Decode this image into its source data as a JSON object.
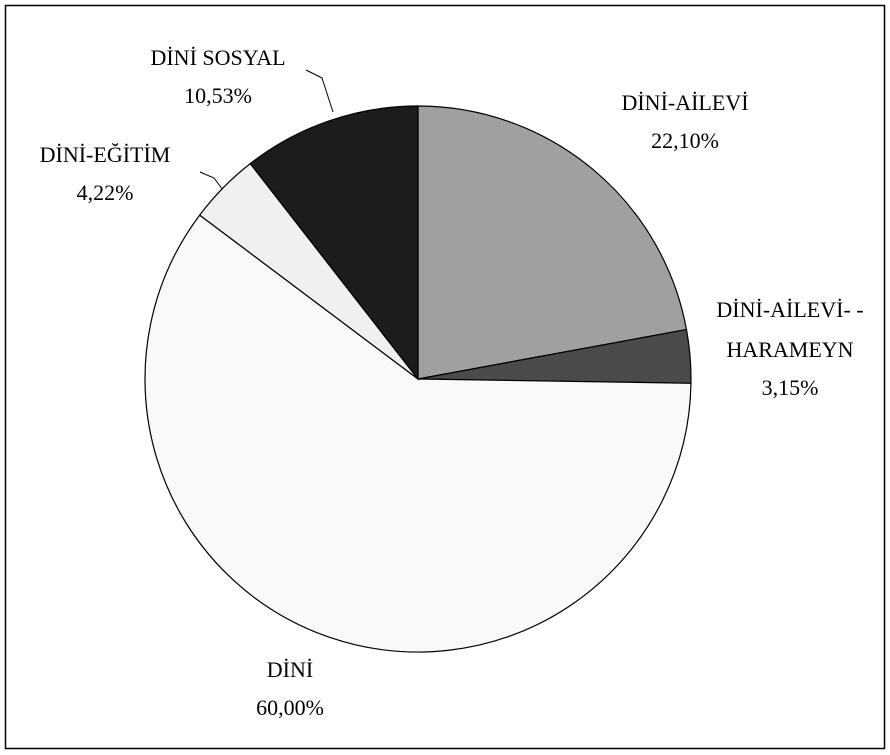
{
  "chart_data": {
    "type": "pie",
    "categories": [
      "DİNİ-AİLEVİ",
      "DİNİ-AİLEVİ- -\nHARAMEYN",
      "DİNİ",
      "DİNİ-EĞİTİM",
      "DİNİ SOSYAL"
    ],
    "values": [
      22.1,
      3.15,
      60.0,
      4.22,
      10.53
    ],
    "value_labels": [
      "22,10%",
      "3,15%",
      "60,00%",
      "4,22%",
      "10,53%"
    ],
    "colors": [
      "#a0a0a0",
      "#4a4a4a",
      "#f9f9f9",
      "#f0f0f0",
      "#1c1c1c"
    ]
  }
}
